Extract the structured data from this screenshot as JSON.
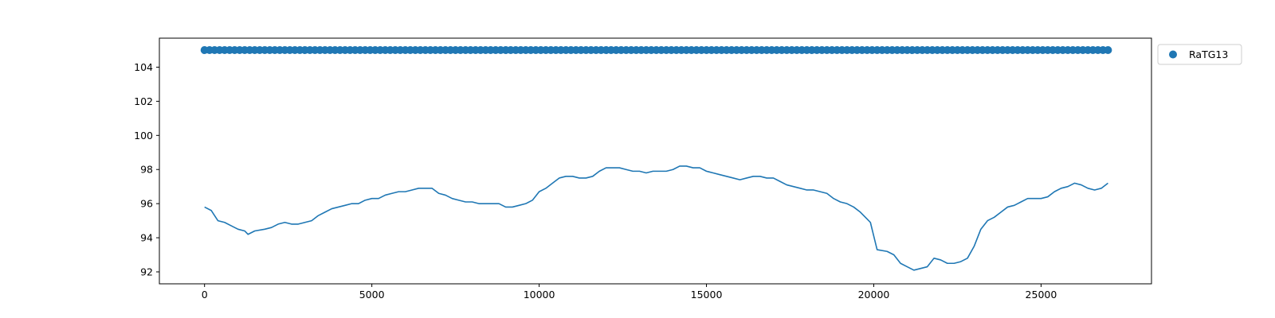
{
  "chart_data": {
    "type": "line",
    "title": "",
    "xlabel": "",
    "ylabel": "",
    "xlim": [
      -1350,
      28300
    ],
    "ylim": [
      91.3,
      105.7
    ],
    "xticks": [
      0,
      5000,
      10000,
      15000,
      20000,
      25000
    ],
    "yticks": [
      92,
      94,
      96,
      98,
      100,
      102,
      104
    ],
    "grid": false,
    "legend_position": "outside-top-right",
    "colors": {
      "series": "#1f77b4",
      "axes": "#000000"
    },
    "legend": [
      {
        "label": "RaTG13",
        "marker": "circle"
      }
    ],
    "series": [
      {
        "name": "RaTG13",
        "kind": "scatter",
        "x_range": [
          0,
          27000
        ],
        "y": 105
      },
      {
        "kind": "line",
        "points": [
          [
            0,
            95.8
          ],
          [
            200,
            95.6
          ],
          [
            300,
            95.3
          ],
          [
            400,
            95.0
          ],
          [
            600,
            94.9
          ],
          [
            800,
            94.7
          ],
          [
            1000,
            94.5
          ],
          [
            1200,
            94.4
          ],
          [
            1300,
            94.2
          ],
          [
            1500,
            94.4
          ],
          [
            1800,
            94.5
          ],
          [
            2000,
            94.6
          ],
          [
            2200,
            94.8
          ],
          [
            2400,
            94.9
          ],
          [
            2600,
            94.8
          ],
          [
            2800,
            94.8
          ],
          [
            3000,
            94.9
          ],
          [
            3200,
            95.0
          ],
          [
            3400,
            95.3
          ],
          [
            3600,
            95.5
          ],
          [
            3800,
            95.7
          ],
          [
            4000,
            95.8
          ],
          [
            4200,
            95.9
          ],
          [
            4400,
            96.0
          ],
          [
            4600,
            96.0
          ],
          [
            4800,
            96.2
          ],
          [
            5000,
            96.3
          ],
          [
            5200,
            96.3
          ],
          [
            5400,
            96.5
          ],
          [
            5600,
            96.6
          ],
          [
            5800,
            96.7
          ],
          [
            6000,
            96.7
          ],
          [
            6200,
            96.8
          ],
          [
            6400,
            96.9
          ],
          [
            6600,
            96.9
          ],
          [
            6800,
            96.9
          ],
          [
            7000,
            96.6
          ],
          [
            7200,
            96.5
          ],
          [
            7400,
            96.3
          ],
          [
            7600,
            96.2
          ],
          [
            7800,
            96.1
          ],
          [
            8000,
            96.1
          ],
          [
            8200,
            96.0
          ],
          [
            8400,
            96.0
          ],
          [
            8600,
            96.0
          ],
          [
            8800,
            96.0
          ],
          [
            9000,
            95.8
          ],
          [
            9200,
            95.8
          ],
          [
            9400,
            95.9
          ],
          [
            9600,
            96.0
          ],
          [
            9800,
            96.2
          ],
          [
            10000,
            96.7
          ],
          [
            10200,
            96.9
          ],
          [
            10400,
            97.2
          ],
          [
            10600,
            97.5
          ],
          [
            10800,
            97.6
          ],
          [
            11000,
            97.6
          ],
          [
            11200,
            97.5
          ],
          [
            11400,
            97.5
          ],
          [
            11600,
            97.6
          ],
          [
            11800,
            97.9
          ],
          [
            12000,
            98.1
          ],
          [
            12200,
            98.1
          ],
          [
            12400,
            98.1
          ],
          [
            12600,
            98.0
          ],
          [
            12800,
            97.9
          ],
          [
            13000,
            97.9
          ],
          [
            13200,
            97.8
          ],
          [
            13400,
            97.9
          ],
          [
            13600,
            97.9
          ],
          [
            13800,
            97.9
          ],
          [
            14000,
            98.0
          ],
          [
            14200,
            98.2
          ],
          [
            14400,
            98.2
          ],
          [
            14600,
            98.1
          ],
          [
            14800,
            98.1
          ],
          [
            15000,
            97.9
          ],
          [
            15200,
            97.8
          ],
          [
            15400,
            97.7
          ],
          [
            15600,
            97.6
          ],
          [
            15800,
            97.5
          ],
          [
            16000,
            97.4
          ],
          [
            16200,
            97.5
          ],
          [
            16400,
            97.6
          ],
          [
            16600,
            97.6
          ],
          [
            16800,
            97.5
          ],
          [
            17000,
            97.5
          ],
          [
            17200,
            97.3
          ],
          [
            17400,
            97.1
          ],
          [
            17600,
            97.0
          ],
          [
            17800,
            96.9
          ],
          [
            18000,
            96.8
          ],
          [
            18200,
            96.8
          ],
          [
            18400,
            96.7
          ],
          [
            18600,
            96.6
          ],
          [
            18800,
            96.3
          ],
          [
            19000,
            96.1
          ],
          [
            19200,
            96.0
          ],
          [
            19400,
            95.8
          ],
          [
            19600,
            95.5
          ],
          [
            19800,
            95.1
          ],
          [
            19900,
            94.9
          ],
          [
            20000,
            94.1
          ],
          [
            20100,
            93.3
          ],
          [
            20400,
            93.2
          ],
          [
            20600,
            93.0
          ],
          [
            20800,
            92.5
          ],
          [
            21000,
            92.3
          ],
          [
            21200,
            92.1
          ],
          [
            21400,
            92.2
          ],
          [
            21600,
            92.3
          ],
          [
            21800,
            92.8
          ],
          [
            22000,
            92.7
          ],
          [
            22200,
            92.5
          ],
          [
            22400,
            92.5
          ],
          [
            22600,
            92.6
          ],
          [
            22800,
            92.8
          ],
          [
            23000,
            93.5
          ],
          [
            23200,
            94.5
          ],
          [
            23400,
            95.0
          ],
          [
            23600,
            95.2
          ],
          [
            23800,
            95.5
          ],
          [
            24000,
            95.8
          ],
          [
            24200,
            95.9
          ],
          [
            24400,
            96.1
          ],
          [
            24600,
            96.3
          ],
          [
            24800,
            96.3
          ],
          [
            25000,
            96.3
          ],
          [
            25200,
            96.4
          ],
          [
            25400,
            96.7
          ],
          [
            25600,
            96.9
          ],
          [
            25800,
            97.0
          ],
          [
            26000,
            97.2
          ],
          [
            26200,
            97.1
          ],
          [
            26400,
            96.9
          ],
          [
            26600,
            96.8
          ],
          [
            26800,
            96.9
          ],
          [
            27000,
            97.2
          ]
        ]
      }
    ]
  }
}
